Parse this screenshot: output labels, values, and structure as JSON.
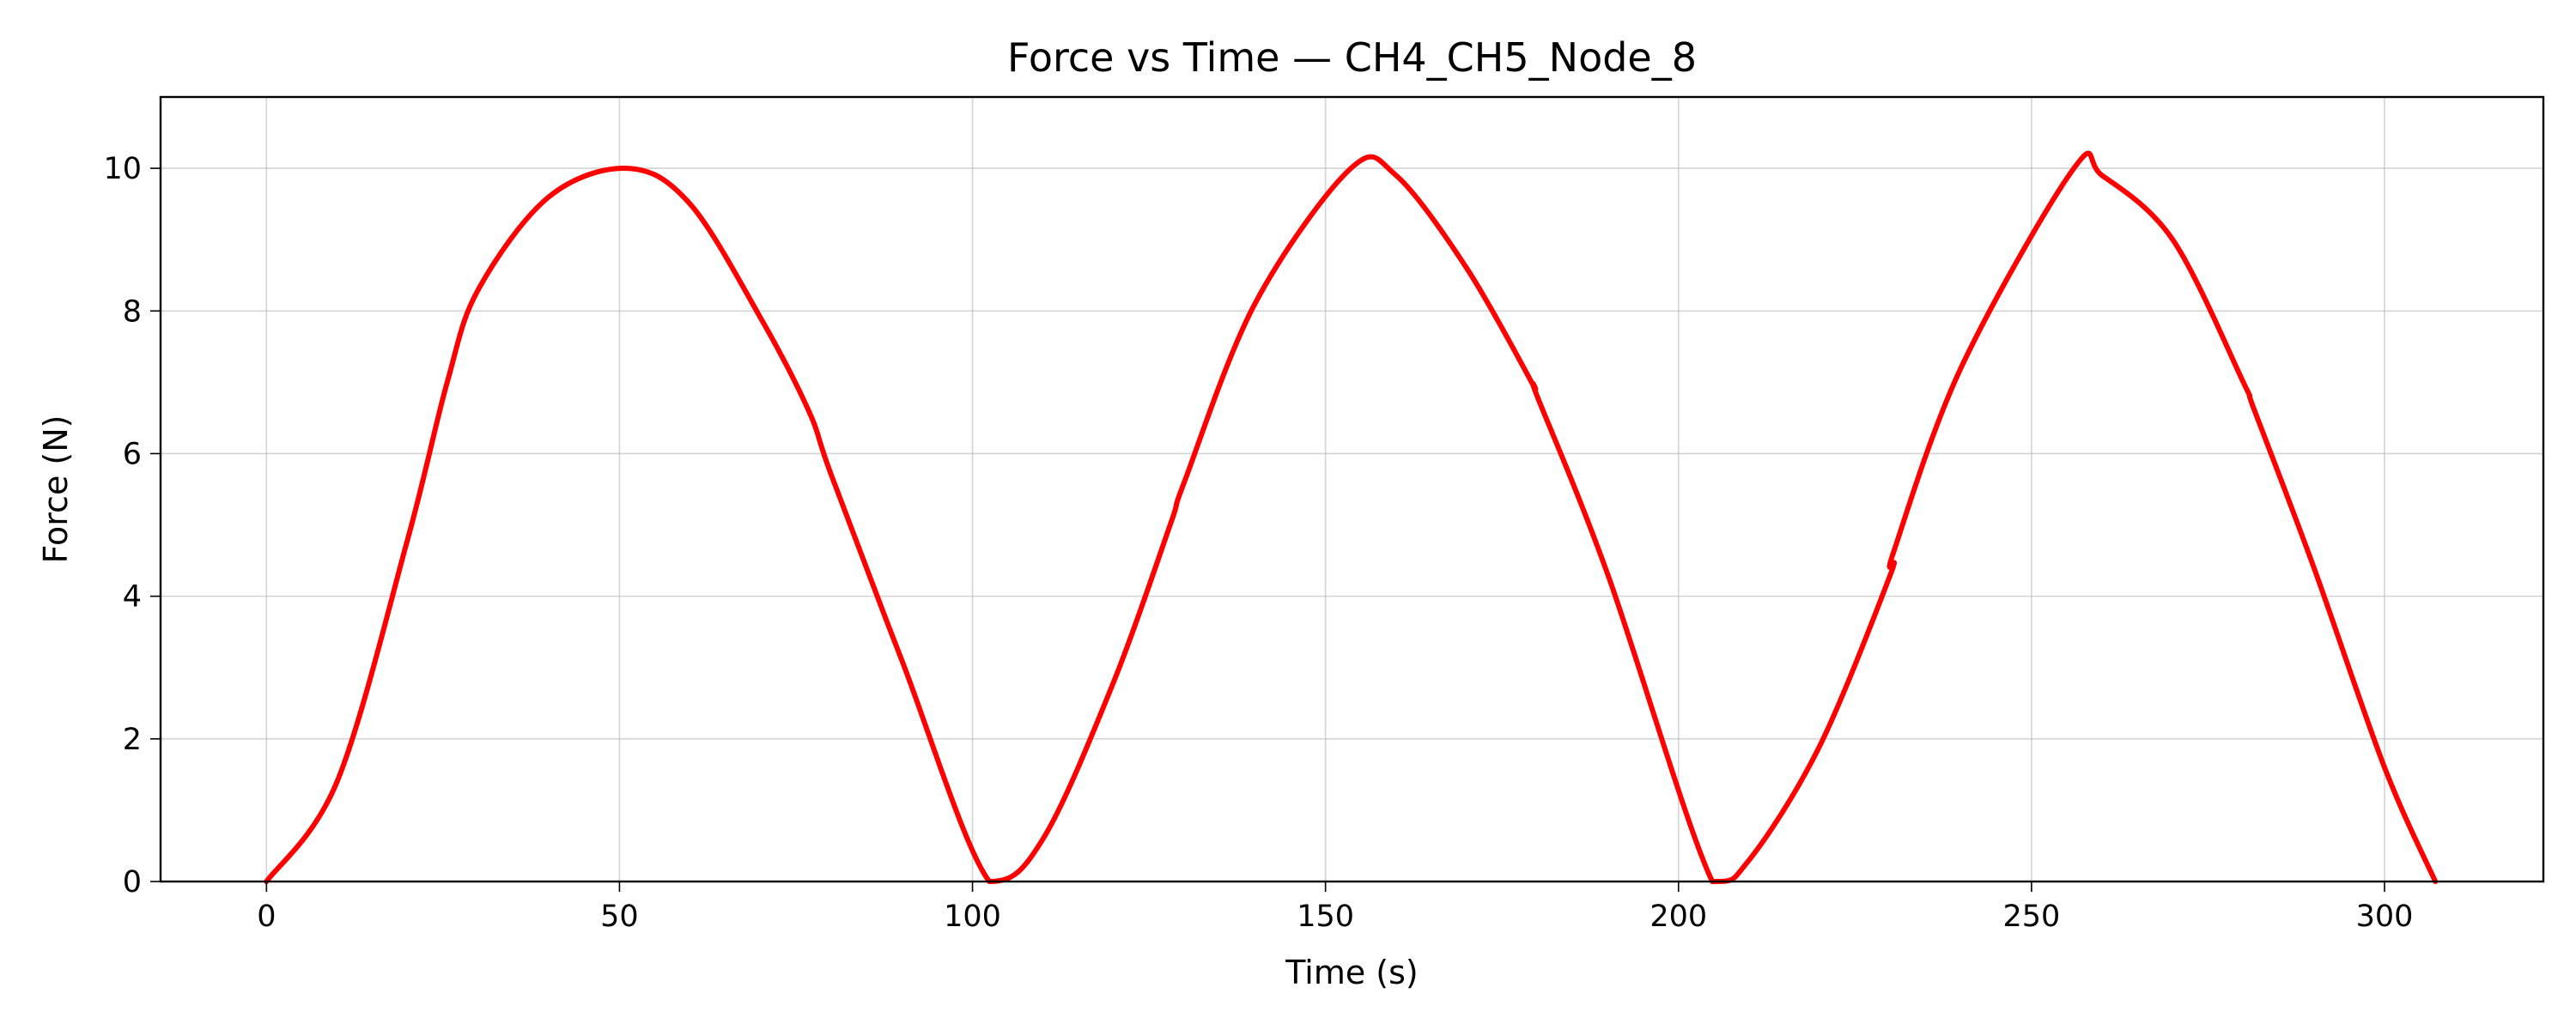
{
  "chart_data": {
    "type": "line",
    "title": "Force vs Time — CH4_CH5_Node_8",
    "xlabel": "Time (s)",
    "ylabel": "Force (N)",
    "xlim": [
      -15,
      322.5
    ],
    "ylim": [
      0,
      11
    ],
    "xticks": [
      0,
      50,
      100,
      150,
      200,
      250,
      300
    ],
    "yticks": [
      0,
      2,
      4,
      6,
      8,
      10
    ],
    "grid": true,
    "legend": null,
    "series": [
      {
        "color": "#ff0000",
        "x": [
          0,
          10,
          20,
          25.6,
          30,
          40,
          51.2,
          60,
          70,
          76.8,
          80,
          90,
          102.4,
          110,
          120,
          128,
          130,
          140,
          153.6,
          160,
          170,
          179.2,
          180,
          190,
          204.8,
          210,
          220,
          230,
          230.4,
          240,
          256,
          260,
          270,
          280,
          281.6,
          290,
          300,
          307.2
        ],
        "y": [
          0,
          1.4,
          4.8,
          7.0,
          8.3,
          9.6,
          10,
          9.5,
          7.9,
          6.6,
          5.7,
          3.1,
          0,
          0.6,
          2.8,
          5.0,
          5.6,
          8.1,
          10,
          9.9,
          8.6,
          7.0,
          6.8,
          4.3,
          0,
          0.3,
          1.9,
          4.3,
          4.6,
          7.2,
          10,
          9.9,
          9.0,
          7.0,
          6.6,
          4.4,
          1.6,
          0
        ]
      }
    ]
  }
}
